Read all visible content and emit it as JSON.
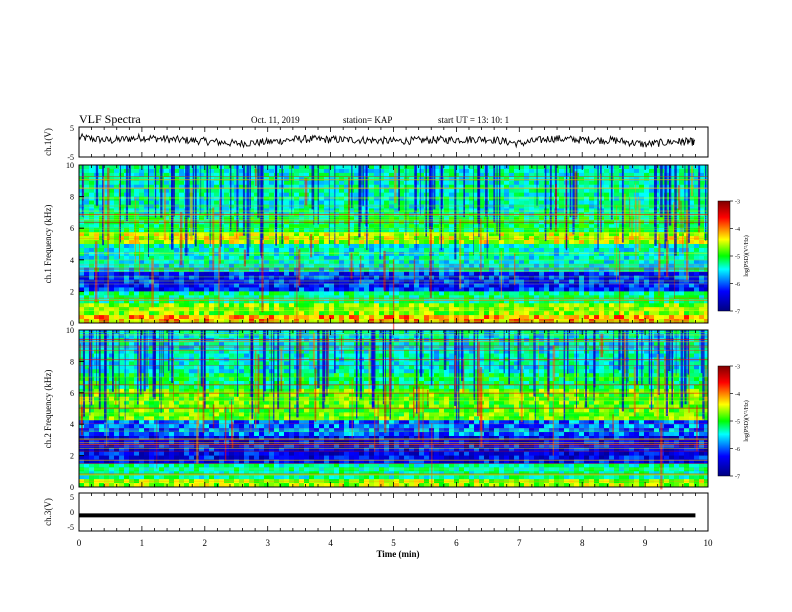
{
  "header": {
    "title": "VLF Spectra",
    "date": "Oct. 11, 2019",
    "station": "station= KAP",
    "start_ut": "start  UT =   13: 10: 1"
  },
  "colors": {
    "colormap": [
      "#00007f",
      "#0000ff",
      "#00ffff",
      "#00ff00",
      "#ffff00",
      "#ff0000",
      "#7f0000"
    ]
  },
  "chart_data": [
    {
      "type": "line",
      "name": "ch1_waveform",
      "ylabel": "ch.1(V)",
      "ylim": [
        -5,
        5
      ],
      "yticks": [
        "5",
        "-5"
      ],
      "x": [
        0,
        0.5,
        1,
        1.5,
        2,
        2.5,
        3,
        3.5,
        4,
        4.5,
        5,
        5.5,
        6,
        6.5,
        7,
        7.5,
        8,
        8.5,
        9,
        9.5,
        9.8
      ],
      "values": [
        1.5,
        0.5,
        1.5,
        0.8,
        0.3,
        -0.5,
        0.0,
        1.0,
        0.8,
        0.7,
        0.3,
        0.6,
        0.8,
        1.0,
        -0.5,
        1.2,
        0.7,
        0.6,
        -0.8,
        0.2,
        0.0
      ]
    },
    {
      "type": "heatmap",
      "name": "ch1_spectrogram",
      "ylabel": "ch.1 Frequency  (kHz)",
      "ylim": [
        0,
        10
      ],
      "yticks": [
        "0",
        "2",
        "4",
        "6",
        "8",
        "10"
      ],
      "xlim": [
        0,
        10
      ],
      "colorbar": {
        "label": "log(PSD)(V²/Hz)",
        "range": [
          -7,
          -3
        ],
        "ticks": [
          "-3",
          "-4",
          "-5",
          "-6",
          "-7"
        ]
      }
    },
    {
      "type": "heatmap",
      "name": "ch2_spectrogram",
      "ylabel": "ch.2 Frequency  (kHz)",
      "ylim": [
        0,
        10
      ],
      "yticks": [
        "0",
        "2",
        "4",
        "6",
        "8",
        "10"
      ],
      "xlim": [
        0,
        10
      ],
      "colorbar": {
        "label": "log(PSD)(V²/Hz)",
        "range": [
          -7,
          -3
        ],
        "ticks": [
          "-3",
          "-4",
          "-5",
          "-6",
          "-7"
        ]
      }
    },
    {
      "type": "line",
      "name": "ch3_waveform",
      "ylabel": "ch.3(V)",
      "ylim": [
        -5,
        5
      ],
      "yticks": [
        "5",
        "0",
        "-5"
      ],
      "x": [
        0,
        9.8
      ],
      "values": [
        -1.0,
        -1.0
      ]
    }
  ],
  "xaxis": {
    "label": "Time  (min)",
    "range": [
      0,
      10
    ],
    "ticks": [
      "0",
      "1",
      "2",
      "3",
      "4",
      "5",
      "6",
      "7",
      "8",
      "9",
      "10"
    ]
  }
}
